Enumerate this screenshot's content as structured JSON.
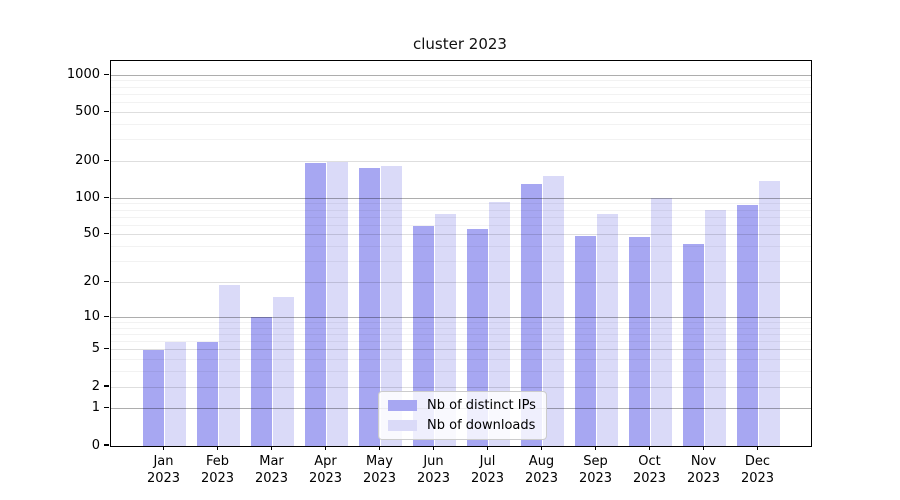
{
  "title": "cluster 2023",
  "chart_data": {
    "type": "bar",
    "title": "cluster 2023",
    "categories": [
      "Jan",
      "Feb",
      "Mar",
      "Apr",
      "May",
      "Jun",
      "Jul",
      "Aug",
      "Sep",
      "Oct",
      "Nov",
      "Dec"
    ],
    "category_year_line": "2023",
    "series": [
      {
        "name": "Nb of distinct IPs",
        "color": "#a7a7f2",
        "values": [
          5,
          6,
          10,
          192,
          177,
          59,
          56,
          130,
          49,
          48,
          42,
          88
        ]
      },
      {
        "name": "Nb of downloads",
        "color": "#dadaf8",
        "values": [
          6,
          19,
          15,
          197,
          183,
          74,
          93,
          152,
          74,
          100,
          80,
          138
        ]
      }
    ],
    "yscale": "log1p",
    "ylim": [
      0,
      1300
    ],
    "y_ticks": [
      0,
      1,
      2,
      5,
      10,
      20,
      50,
      100,
      200,
      500,
      1000
    ],
    "y_minor_ticks": [
      3,
      4,
      6,
      7,
      8,
      9,
      30,
      40,
      60,
      70,
      80,
      90,
      300,
      400,
      600,
      700,
      800,
      900
    ],
    "grid": true,
    "legend_position": "lower center",
    "xlabel": "",
    "ylabel": ""
  },
  "legend": {
    "items": [
      {
        "label": "Nb of distinct IPs",
        "color": "#a7a7f2"
      },
      {
        "label": "Nb of downloads",
        "color": "#dadaf8"
      }
    ]
  },
  "colors": {
    "bar_distinct_ips": "#a7a7f2",
    "bar_downloads": "#dadaf8",
    "spine": "#000000",
    "background": "#ffffff"
  }
}
